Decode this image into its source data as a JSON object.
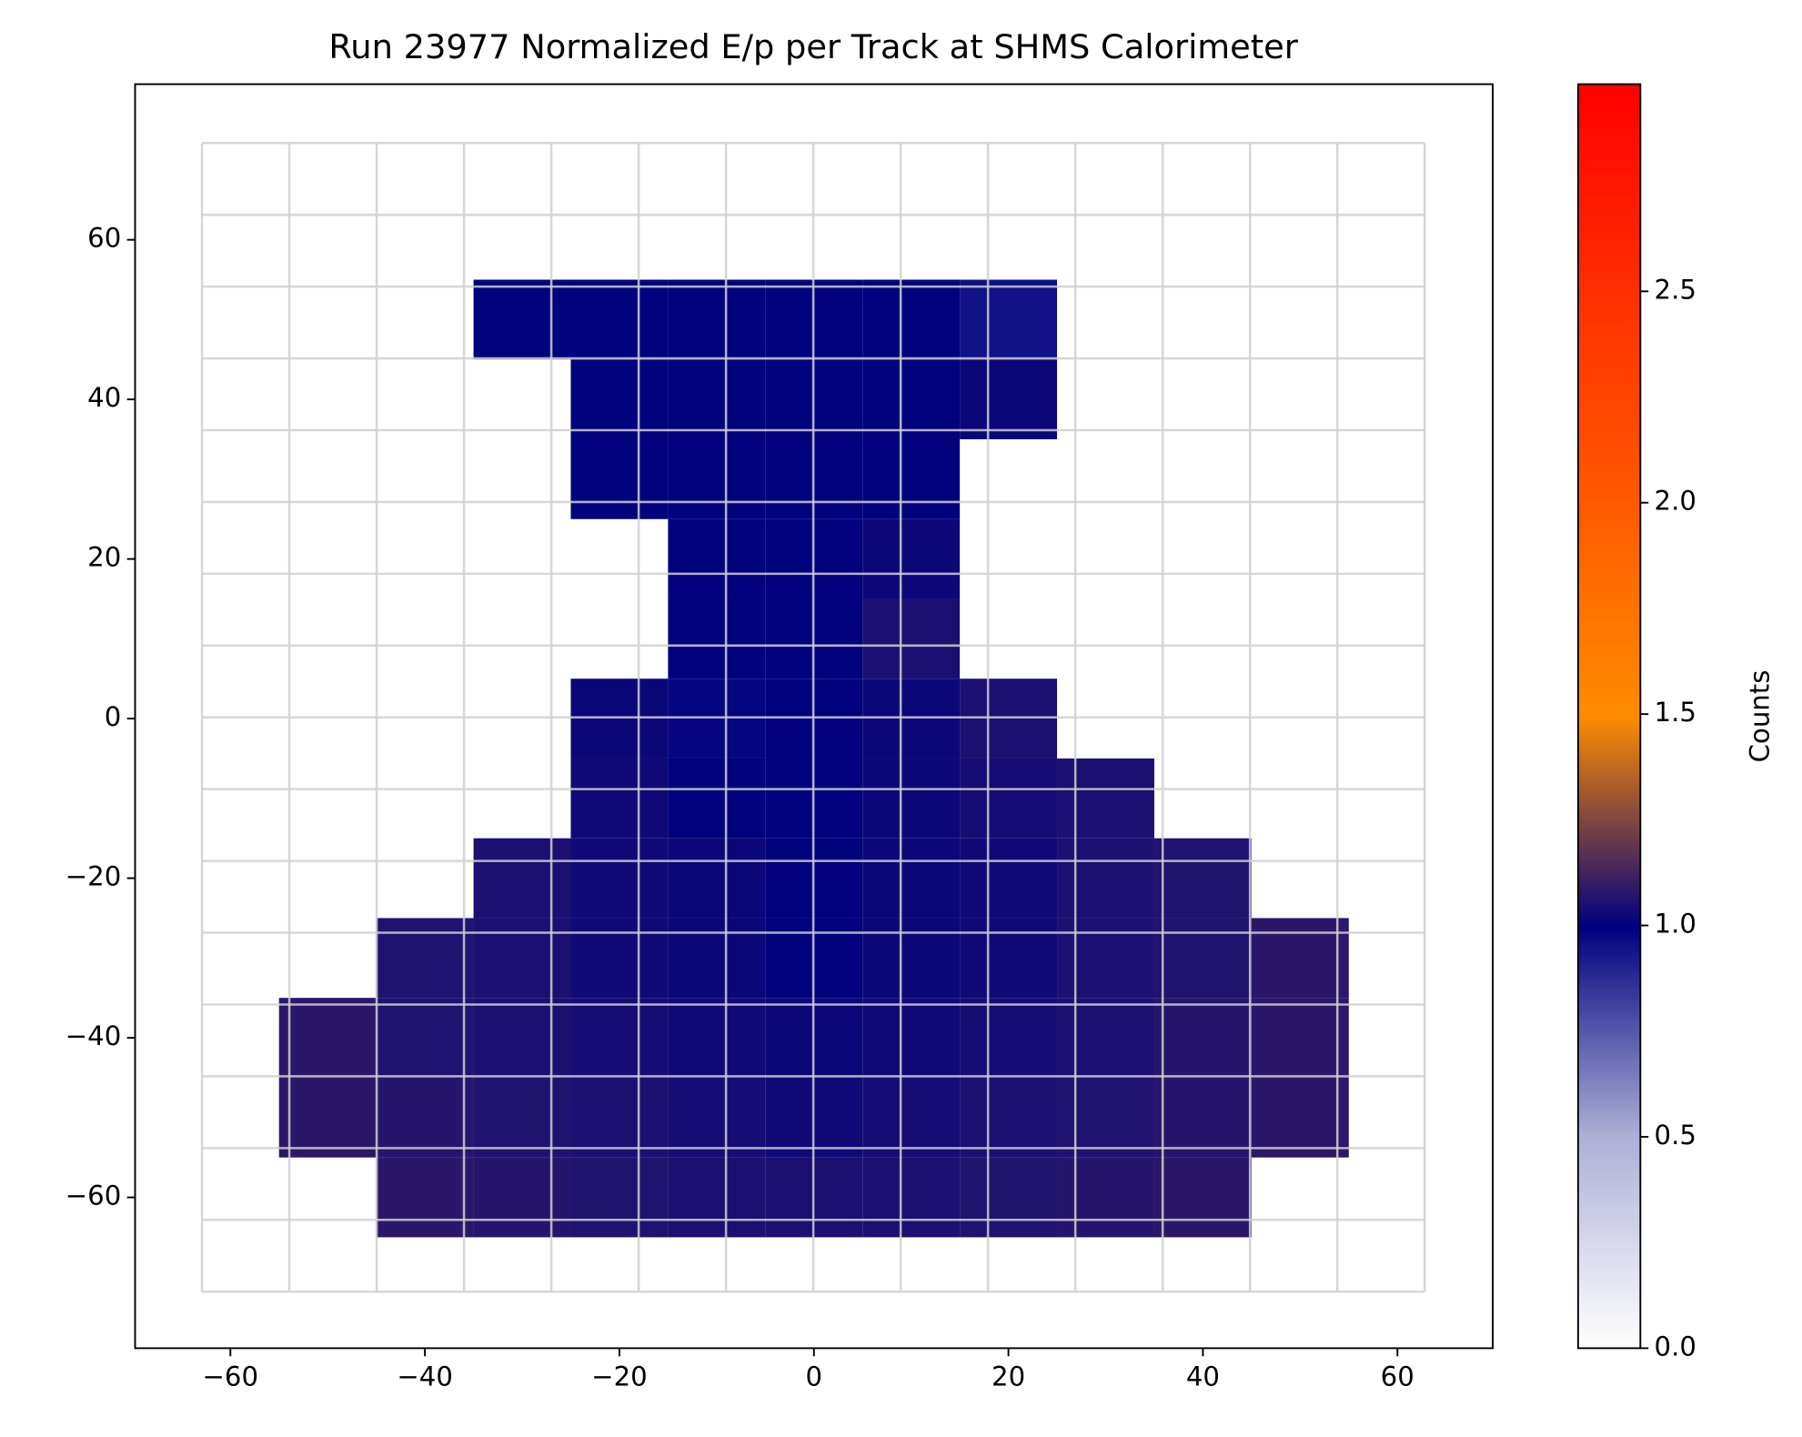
{
  "chart_data": {
    "type": "heatmap",
    "title": "Run 23977 Normalized E/p per Track at SHMS Calorimeter",
    "colorbar_label": "Counts",
    "x_edges": [
      -55,
      -45,
      -35,
      -25,
      -15,
      -5,
      5,
      15,
      25,
      35,
      45,
      55
    ],
    "y_edges": [
      65,
      55,
      45,
      35,
      25,
      15,
      5,
      -5,
      -15,
      -25,
      -35,
      -45,
      -55,
      -65
    ],
    "values": [
      [
        null,
        null,
        null,
        null,
        null,
        null,
        null,
        null,
        null,
        null,
        null
      ],
      [
        null,
        null,
        1.0,
        1.0,
        1.0,
        1.0,
        1.0,
        0.95,
        null,
        null,
        null
      ],
      [
        null,
        null,
        null,
        1.0,
        1.0,
        1.0,
        1.0,
        1.02,
        null,
        null,
        null
      ],
      [
        null,
        null,
        null,
        1.0,
        1.0,
        1.0,
        1.0,
        null,
        null,
        null,
        null
      ],
      [
        null,
        null,
        null,
        null,
        1.0,
        1.0,
        1.02,
        null,
        null,
        null,
        null
      ],
      [
        null,
        null,
        null,
        null,
        1.0,
        1.0,
        1.05,
        null,
        null,
        null,
        null
      ],
      [
        null,
        null,
        null,
        1.02,
        0.98,
        1.0,
        1.02,
        1.05,
        null,
        null,
        null
      ],
      [
        null,
        null,
        null,
        1.03,
        1.0,
        1.0,
        1.02,
        1.04,
        1.05,
        null,
        null
      ],
      [
        null,
        null,
        1.05,
        1.03,
        1.02,
        1.0,
        1.02,
        1.03,
        1.05,
        1.06,
        null
      ],
      [
        null,
        1.06,
        1.05,
        1.03,
        1.02,
        1.0,
        1.02,
        1.03,
        1.05,
        1.06,
        1.08
      ],
      [
        1.08,
        1.06,
        1.05,
        1.04,
        1.03,
        1.02,
        1.03,
        1.04,
        1.05,
        1.07,
        1.08
      ],
      [
        1.08,
        1.07,
        1.06,
        1.05,
        1.04,
        1.03,
        1.04,
        1.05,
        1.06,
        1.07,
        1.08
      ],
      [
        null,
        1.08,
        1.07,
        1.06,
        1.05,
        1.05,
        1.05,
        1.06,
        1.07,
        1.08,
        null
      ]
    ],
    "xlim": [
      -69.8,
      69.8
    ],
    "ylim": [
      -78.9,
      79.5
    ],
    "xticks": [
      {
        "value": -60,
        "label": "−60"
      },
      {
        "value": -40,
        "label": "−40"
      },
      {
        "value": -20,
        "label": "−20"
      },
      0,
      20,
      40,
      60
    ],
    "yticks": [
      {
        "value": -60,
        "label": "−60"
      },
      {
        "value": -40,
        "label": "−40"
      },
      {
        "value": -20,
        "label": "−20"
      },
      0,
      20,
      40,
      60
    ],
    "clim": [
      0,
      2.99
    ],
    "cticks": [
      {
        "value": 0,
        "label": "0.0"
      },
      0.5,
      {
        "value": 1,
        "label": "1.0"
      },
      1.5,
      {
        "value": 2,
        "label": "2.0"
      },
      2.5
    ],
    "colormap": [
      "#ffffff",
      "#aeb0d6",
      "#00007f",
      "#ff8c00",
      "#ff5a00",
      "#ff3000",
      "#ff0000"
    ]
  }
}
